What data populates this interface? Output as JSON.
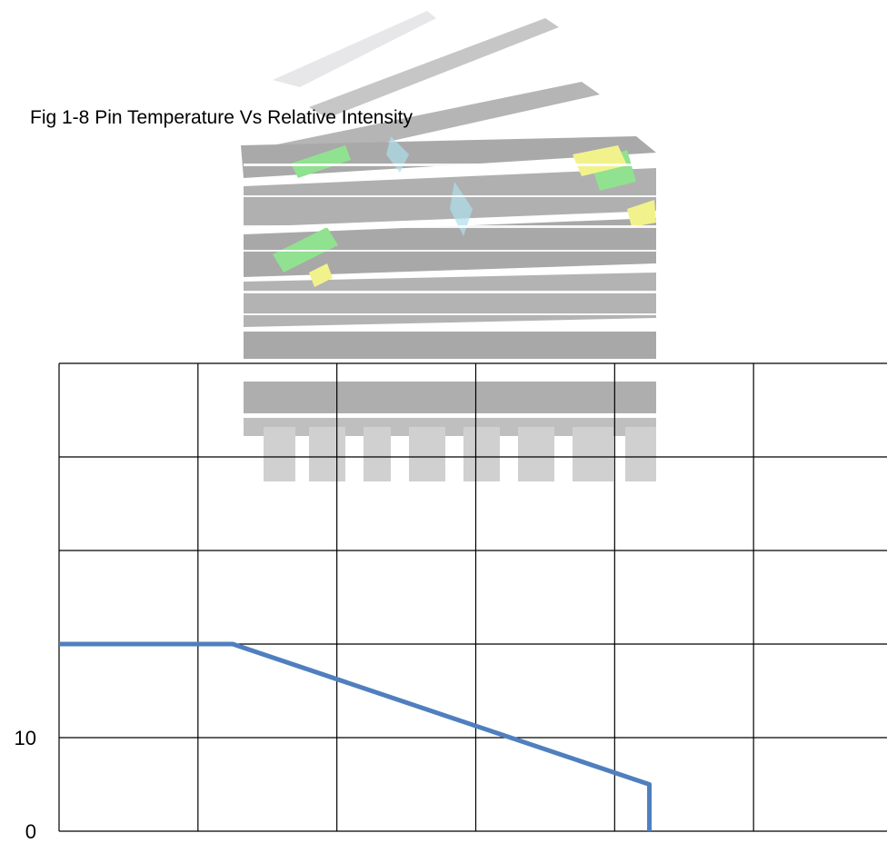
{
  "caption": "Fig 1-8 Pin Temperature Vs Relative Intensity",
  "chart_data": {
    "type": "line",
    "title": "",
    "xlabel": "",
    "ylabel": "",
    "xlim": [
      0,
      6
    ],
    "ylim": [
      0,
      50
    ],
    "x_gridlines": [
      1,
      2,
      3,
      4,
      5
    ],
    "y_gridlines": [
      10,
      20,
      30,
      40
    ],
    "y_tick_labels": [
      {
        "value": 0,
        "label": "0"
      },
      {
        "value": 10,
        "label": "10"
      }
    ],
    "grid": true,
    "series": [
      {
        "name": "",
        "color": "#4f7fbf",
        "x": [
          0,
          1.25,
          4.25,
          4.25
        ],
        "y": [
          20,
          20,
          5,
          0
        ]
      }
    ]
  },
  "watermark": {
    "description_icon": "fiber-optic-connectors-logo-watermark",
    "colors": [
      "#a8a8a8",
      "#dcdcdc",
      "#7ddc7d",
      "#f0f07a",
      "#9fd8e8"
    ]
  }
}
